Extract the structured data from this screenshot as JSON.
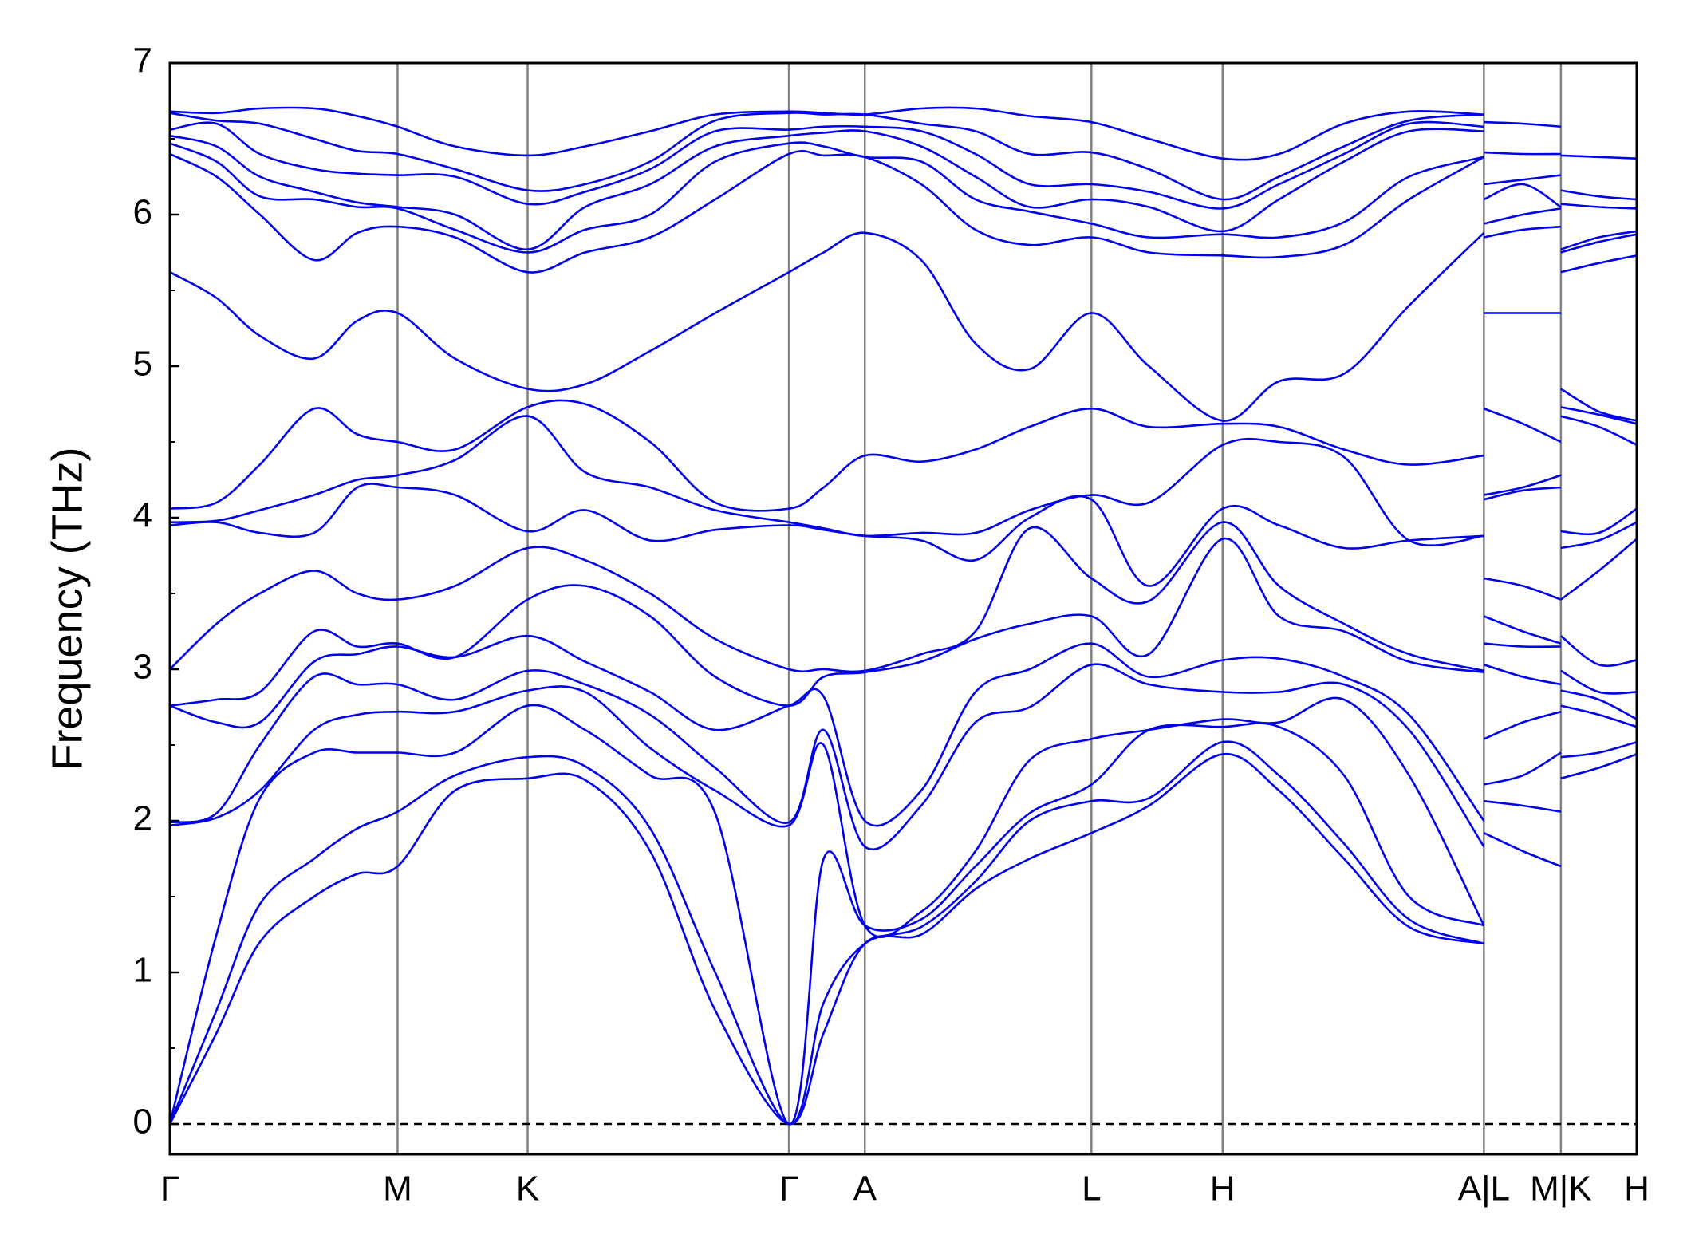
{
  "chart_data": {
    "type": "line",
    "y_label": "Frequency (THz)",
    "color": "#0000ee",
    "axis_color": "#808080",
    "hline": 0,
    "hline_style": "dashed",
    "ylim": [
      -0.2,
      7
    ],
    "yticks": [
      0,
      1,
      2,
      3,
      4,
      5,
      6,
      7
    ],
    "yminorticks": [
      0.5,
      1.5,
      2.5,
      3.5,
      4.5,
      5.5,
      6.5
    ],
    "xlim": [
      0,
      13.53
    ],
    "xticks": [
      {
        "value": 0,
        "label": "Γ"
      },
      {
        "value": 2.1,
        "label": "M"
      },
      {
        "value": 3.3,
        "label": "K"
      },
      {
        "value": 5.71,
        "label": "Γ"
      },
      {
        "value": 6.41,
        "label": "A"
      },
      {
        "value": 8.5,
        "label": "L"
      },
      {
        "value": 9.71,
        "label": "H"
      },
      {
        "value": 12.12,
        "label": "A|L"
      },
      {
        "value": 12.83,
        "label": "M|K"
      },
      {
        "value": 13.53,
        "label": "H"
      }
    ],
    "x": [
      0,
      0.43,
      0.83,
      1.33,
      1.73,
      2.1,
      2.63,
      3.3,
      3.83,
      4.43,
      5.03,
      5.71,
      6.03,
      6.41,
      6.93,
      7.43,
      7.93,
      8.5,
      9.03,
      9.71,
      10.23,
      10.83,
      11.43,
      12.12,
      12.12,
      12.12,
      12.48,
      12.83,
      12.83,
      12.83,
      13.18,
      13.53
    ],
    "series": [
      {
        "values": [
          0,
          0.6,
          1.2,
          1.5,
          1.65,
          1.7,
          2.2,
          2.28,
          2.27,
          1.8,
          0.75,
          0,
          0.6,
          1.19,
          1.25,
          1.55,
          1.75,
          1.92,
          2.1,
          2.44,
          2.2,
          1.75,
          1.3,
          1.19,
          null,
          1.92,
          1.8,
          1.7,
          null,
          2.28,
          2.35,
          2.44
        ]
      },
      {
        "values": [
          0,
          0.75,
          1.45,
          1.75,
          1.95,
          2.06,
          2.3,
          2.42,
          2.36,
          1.95,
          1.0,
          0,
          0.8,
          1.19,
          1.3,
          1.6,
          2.0,
          2.13,
          2.15,
          2.52,
          2.3,
          1.85,
          1.35,
          1.19,
          null,
          2.13,
          2.1,
          2.06,
          null,
          2.42,
          2.45,
          2.52
        ]
      },
      {
        "values": [
          0,
          1.25,
          2.15,
          2.45,
          2.45,
          2.45,
          2.45,
          2.76,
          2.6,
          2.3,
          2.05,
          0,
          1.75,
          1.31,
          1.35,
          1.7,
          2.05,
          2.24,
          2.6,
          2.62,
          2.62,
          2.3,
          1.5,
          1.31,
          null,
          2.24,
          2.3,
          2.45,
          null,
          2.76,
          2.7,
          2.62
        ]
      },
      {
        "values": [
          1.97,
          2.02,
          2.2,
          2.6,
          2.7,
          2.72,
          2.72,
          2.86,
          2.85,
          2.48,
          2.2,
          1.97,
          2.5,
          1.31,
          1.4,
          1.8,
          2.4,
          2.54,
          2.6,
          2.67,
          2.65,
          2.8,
          2.3,
          1.31,
          null,
          2.54,
          2.65,
          2.72,
          null,
          2.86,
          2.8,
          2.67
        ]
      },
      {
        "values": [
          1.99,
          2.05,
          2.5,
          2.95,
          2.9,
          2.9,
          2.8,
          2.99,
          2.9,
          2.7,
          2.35,
          1.99,
          2.6,
          1.83,
          2.1,
          2.65,
          2.75,
          3.03,
          2.9,
          2.85,
          2.85,
          2.9,
          2.6,
          1.83,
          null,
          3.03,
          2.95,
          2.9,
          null,
          2.99,
          2.85,
          2.85
        ]
      },
      {
        "values": [
          2.76,
          2.65,
          2.65,
          3.05,
          3.1,
          3.15,
          3.08,
          3.22,
          3.05,
          2.85,
          2.6,
          2.76,
          2.82,
          2.0,
          2.2,
          2.85,
          3.0,
          3.17,
          2.95,
          3.06,
          3.07,
          2.95,
          2.7,
          2.0,
          null,
          3.17,
          3.15,
          3.15,
          null,
          3.22,
          3.03,
          3.06
        ]
      },
      {
        "values": [
          2.76,
          2.8,
          2.85,
          3.25,
          3.15,
          3.17,
          3.08,
          3.46,
          3.55,
          3.35,
          2.95,
          2.76,
          2.95,
          2.98,
          3.05,
          3.2,
          3.3,
          3.35,
          3.1,
          3.86,
          3.35,
          3.25,
          3.05,
          2.98,
          null,
          3.35,
          3.25,
          3.17,
          null,
          3.46,
          3.65,
          3.86
        ]
      },
      {
        "values": [
          3.0,
          3.3,
          3.5,
          3.65,
          3.5,
          3.46,
          3.55,
          3.8,
          3.72,
          3.5,
          3.2,
          3.0,
          3.0,
          2.99,
          3.1,
          3.25,
          3.93,
          3.6,
          3.45,
          3.97,
          3.55,
          3.3,
          3.1,
          2.99,
          null,
          3.6,
          3.55,
          3.46,
          null,
          3.8,
          3.85,
          3.97
        ]
      },
      {
        "values": [
          3.95,
          3.97,
          3.9,
          3.9,
          4.2,
          4.2,
          4.15,
          3.91,
          4.05,
          3.85,
          3.92,
          3.95,
          3.92,
          3.88,
          3.85,
          3.72,
          4.0,
          4.12,
          3.55,
          4.06,
          3.95,
          3.8,
          3.85,
          3.88,
          null,
          4.12,
          4.18,
          4.2,
          null,
          3.91,
          3.9,
          4.06
        ]
      },
      {
        "values": [
          3.97,
          3.98,
          4.05,
          4.15,
          4.25,
          4.28,
          4.38,
          4.67,
          4.3,
          4.2,
          4.05,
          3.97,
          3.93,
          3.88,
          3.9,
          3.9,
          4.05,
          4.15,
          4.1,
          4.48,
          4.5,
          4.4,
          3.85,
          3.88,
          null,
          4.15,
          4.2,
          4.28,
          null,
          4.67,
          4.6,
          4.48
        ]
      },
      {
        "values": [
          4.06,
          4.1,
          4.35,
          4.72,
          4.55,
          4.5,
          4.45,
          4.73,
          4.75,
          4.5,
          4.1,
          4.06,
          4.2,
          4.41,
          4.37,
          4.45,
          4.6,
          4.72,
          4.6,
          4.62,
          4.6,
          4.45,
          4.35,
          4.41,
          null,
          4.72,
          4.62,
          4.5,
          null,
          4.73,
          4.68,
          4.62
        ]
      },
      {
        "values": [
          5.62,
          5.45,
          5.2,
          5.05,
          5.3,
          5.35,
          5.05,
          4.85,
          4.88,
          5.1,
          5.35,
          5.62,
          5.75,
          5.88,
          5.7,
          5.15,
          4.98,
          5.35,
          5.0,
          4.64,
          4.9,
          4.95,
          5.4,
          5.88,
          null,
          5.35,
          5.35,
          5.35,
          null,
          4.85,
          4.7,
          4.64
        ]
      },
      {
        "values": [
          6.4,
          6.25,
          6.0,
          5.7,
          5.88,
          5.92,
          5.85,
          5.62,
          5.75,
          5.85,
          6.1,
          6.4,
          6.39,
          6.38,
          6.2,
          5.9,
          5.8,
          5.85,
          5.75,
          5.73,
          5.72,
          5.8,
          6.1,
          6.38,
          null,
          5.85,
          5.9,
          5.92,
          null,
          5.62,
          5.68,
          5.73
        ]
      },
      {
        "values": [
          6.47,
          6.35,
          6.12,
          6.1,
          6.05,
          6.04,
          5.9,
          5.75,
          5.9,
          6.0,
          6.35,
          6.47,
          6.45,
          6.38,
          6.35,
          6.1,
          6.02,
          5.94,
          5.85,
          5.87,
          5.85,
          5.95,
          6.25,
          6.38,
          null,
          5.94,
          6.0,
          6.04,
          null,
          5.75,
          5.82,
          5.87
        ]
      },
      {
        "values": [
          6.52,
          6.45,
          6.25,
          6.15,
          6.08,
          6.05,
          6.0,
          5.77,
          6.05,
          6.2,
          6.45,
          6.52,
          6.54,
          6.55,
          6.45,
          6.25,
          6.05,
          6.1,
          6.05,
          5.89,
          6.1,
          6.35,
          6.55,
          6.55,
          null,
          6.1,
          6.2,
          6.05,
          null,
          5.77,
          5.85,
          5.89
        ]
      },
      {
        "values": [
          6.56,
          6.6,
          6.4,
          6.3,
          6.27,
          6.26,
          6.25,
          6.07,
          6.15,
          6.3,
          6.55,
          6.56,
          6.58,
          6.58,
          6.55,
          6.4,
          6.2,
          6.2,
          6.15,
          6.04,
          6.2,
          6.4,
          6.6,
          6.58,
          null,
          6.2,
          6.23,
          6.26,
          null,
          6.07,
          6.05,
          6.04
        ]
      },
      {
        "values": [
          6.67,
          6.62,
          6.6,
          6.5,
          6.42,
          6.4,
          6.3,
          6.16,
          6.2,
          6.35,
          6.62,
          6.67,
          6.66,
          6.66,
          6.6,
          6.55,
          6.4,
          6.41,
          6.3,
          6.1,
          6.25,
          6.45,
          6.62,
          6.66,
          null,
          6.41,
          6.4,
          6.4,
          null,
          6.16,
          6.12,
          6.1
        ]
      },
      {
        "values": [
          6.68,
          6.67,
          6.7,
          6.7,
          6.65,
          6.58,
          6.45,
          6.39,
          6.45,
          6.55,
          6.66,
          6.68,
          6.67,
          6.66,
          6.7,
          6.7,
          6.65,
          6.61,
          6.5,
          6.37,
          6.4,
          6.6,
          6.68,
          6.66,
          null,
          6.61,
          6.6,
          6.58,
          null,
          6.39,
          6.38,
          6.37
        ]
      }
    ]
  }
}
